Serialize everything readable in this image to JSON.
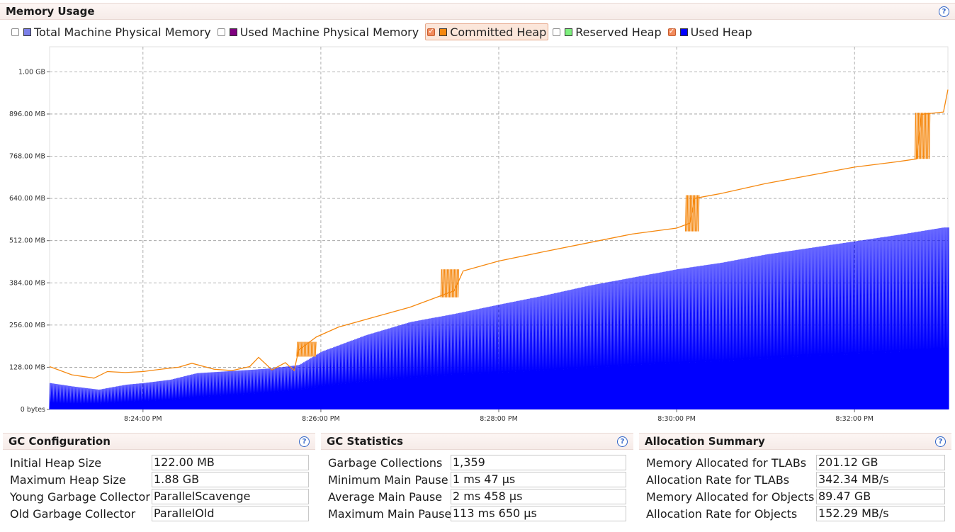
{
  "memory_usage": {
    "title": "Memory Usage",
    "help_glyph": "?",
    "legend": [
      {
        "label": "Total Machine Physical Memory",
        "checked": false,
        "color": "#7b7fe8"
      },
      {
        "label": "Used Machine Physical Memory",
        "checked": false,
        "color": "#800080"
      },
      {
        "label": "Committed Heap",
        "checked": true,
        "color": "#f5880f",
        "highlight": true
      },
      {
        "label": "Reserved Heap",
        "checked": false,
        "color": "#7ef07e"
      },
      {
        "label": "Used Heap",
        "checked": true,
        "color": "#0000ff"
      }
    ],
    "check_glyph": "✓"
  },
  "chart_data": {
    "type": "area",
    "title": "",
    "xlabel": "",
    "ylabel": "",
    "y_unit": "MB",
    "ylim": [
      0,
      1100
    ],
    "y_ticks": [
      {
        "value": 0,
        "label": "0 bytes"
      },
      {
        "value": 128,
        "label": "128.00 MB"
      },
      {
        "value": 256,
        "label": "256.00 MB"
      },
      {
        "value": 384,
        "label": "384.00 MB"
      },
      {
        "value": 512,
        "label": "512.00 MB"
      },
      {
        "value": 640,
        "label": "640.00 MB"
      },
      {
        "value": 768,
        "label": "768.00 MB"
      },
      {
        "value": 896,
        "label": "896.00 MB"
      },
      {
        "value": 1024,
        "label": "1.00 GB"
      }
    ],
    "x_unit": "minutes after 8:00 PM",
    "xlim": [
      22.95,
      33.05
    ],
    "x_ticks": [
      {
        "value": 24,
        "label": "8:24:00 PM"
      },
      {
        "value": 26,
        "label": "8:26:00 PM"
      },
      {
        "value": 28,
        "label": "8:28:00 PM"
      },
      {
        "value": 30,
        "label": "8:30:00 PM"
      },
      {
        "value": 32,
        "label": "8:32:00 PM"
      }
    ],
    "grid": true,
    "series": [
      {
        "name": "Committed Heap",
        "color": "#f5880f",
        "x": [
          22.95,
          23.2,
          23.45,
          23.6,
          23.8,
          24.0,
          24.2,
          24.4,
          24.55,
          24.8,
          25.0,
          25.2,
          25.3,
          25.45,
          25.6,
          25.7,
          25.75,
          25.95,
          26.2,
          26.6,
          27.0,
          27.3,
          27.5,
          27.6,
          28.0,
          28.5,
          29.0,
          29.5,
          30.0,
          30.15,
          30.2,
          30.5,
          31.0,
          31.5,
          32.0,
          32.5,
          32.7,
          32.75,
          33.0,
          33.05
        ],
        "y": [
          130,
          105,
          95,
          115,
          112,
          115,
          122,
          128,
          140,
          122,
          118,
          130,
          158,
          120,
          142,
          118,
          180,
          220,
          250,
          280,
          310,
          340,
          360,
          420,
          450,
          478,
          505,
          532,
          550,
          565,
          640,
          655,
          685,
          710,
          735,
          752,
          760,
          895,
          902,
          970
        ]
      },
      {
        "name": "Used Heap",
        "color": "#0000ff",
        "x": [
          22.95,
          23.2,
          23.5,
          23.8,
          24.0,
          24.3,
          24.6,
          24.9,
          25.2,
          25.45,
          25.75,
          26.0,
          26.5,
          27.0,
          27.5,
          28.0,
          28.5,
          29.0,
          29.5,
          30.0,
          30.5,
          31.0,
          31.5,
          32.0,
          32.5,
          33.0
        ],
        "y": [
          80,
          70,
          60,
          75,
          80,
          90,
          110,
          115,
          120,
          125,
          135,
          175,
          225,
          265,
          290,
          318,
          345,
          375,
          400,
          425,
          445,
          470,
          490,
          510,
          530,
          552
        ],
        "y_min": [
          5,
          5,
          8,
          10,
          12,
          15,
          20,
          25,
          30,
          35,
          40,
          45,
          50,
          55,
          60,
          60,
          62,
          64,
          68,
          70,
          72,
          76,
          80,
          82,
          85,
          88
        ]
      }
    ]
  },
  "gc_configuration": {
    "title": "GC Configuration",
    "rows": [
      {
        "label": "Initial Heap Size",
        "value": "122.00 MB"
      },
      {
        "label": "Maximum Heap Size",
        "value": "1.88 GB"
      },
      {
        "label": "Young Garbage Collector",
        "value": "ParallelScavenge"
      },
      {
        "label": "Old Garbage Collector",
        "value": "ParallelOld"
      }
    ]
  },
  "gc_statistics": {
    "title": "GC Statistics",
    "rows": [
      {
        "label": "Garbage Collections",
        "value": "1,359"
      },
      {
        "label": "Minimum Main Pause",
        "value": "1 ms 47 µs"
      },
      {
        "label": "Average Main Pause",
        "value": "2 ms 458 µs"
      },
      {
        "label": "Maximum Main Pause",
        "value": "113 ms 650 µs"
      }
    ]
  },
  "allocation_summary": {
    "title": "Allocation Summary",
    "rows": [
      {
        "label": "Memory Allocated for TLABs",
        "value": "201.12 GB"
      },
      {
        "label": "Allocation Rate for TLABs",
        "value": "342.34 MB/s"
      },
      {
        "label": "Memory Allocated for Objects",
        "value": "89.47 GB"
      },
      {
        "label": "Allocation Rate for Objects",
        "value": "152.29 MB/s"
      }
    ]
  }
}
